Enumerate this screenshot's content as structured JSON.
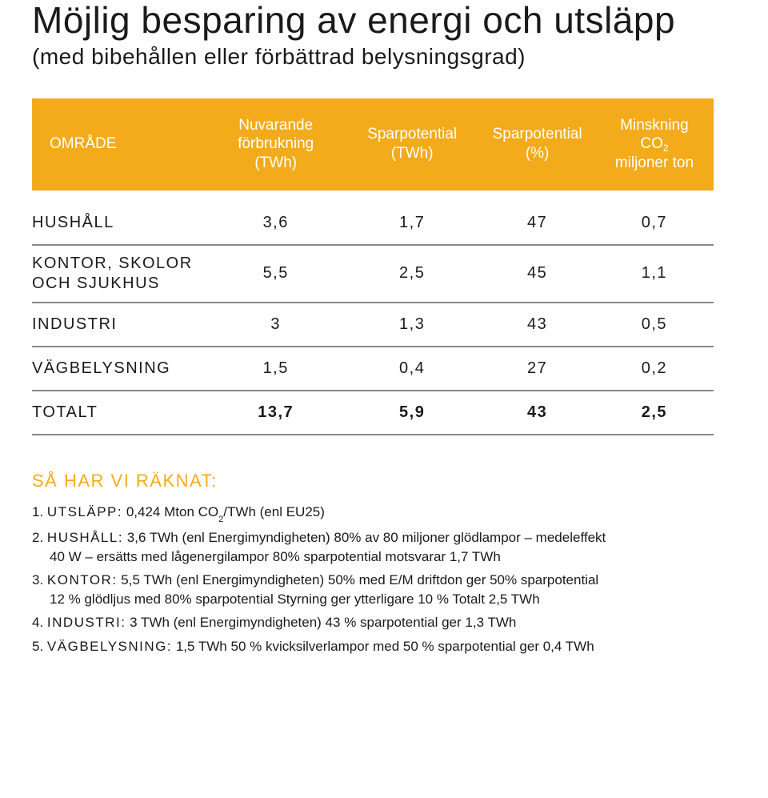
{
  "title": "Möjlig besparing av energi och utsläpp",
  "subtitle": "(med bibehållen eller förbättrad belysningsgrad)",
  "table": {
    "accent_color": "#f3ab1c",
    "rule_color": "#888888",
    "columns": [
      {
        "lines": [
          "OMRÅDE"
        ]
      },
      {
        "lines": [
          "Nuvarande",
          "förbrukning",
          "(TWh)"
        ]
      },
      {
        "lines": [
          "Sparpotential",
          "(TWh)"
        ]
      },
      {
        "lines": [
          "Sparpotential",
          "(%)"
        ]
      },
      {
        "lines": [
          "Minskning",
          "CO₂",
          "miljoner ton"
        ],
        "co2_sub": true
      }
    ],
    "rows": [
      {
        "label_lines": [
          "HUSHÅLL"
        ],
        "v": [
          "3,6",
          "1,7",
          "47",
          "0,7"
        ]
      },
      {
        "label_lines": [
          "KONTOR, SKOLOR",
          "OCH SJUKHUS"
        ],
        "v": [
          "5,5",
          "2,5",
          "45",
          "1,1"
        ]
      },
      {
        "label_lines": [
          "INDUSTRI"
        ],
        "v": [
          "3",
          "1,3",
          "43",
          "0,5"
        ]
      },
      {
        "label_lines": [
          "VÄGBELYSNING"
        ],
        "v": [
          "1,5",
          "0,4",
          "27",
          "0,2"
        ]
      },
      {
        "label_lines": [
          "TOTALT"
        ],
        "v": [
          "13,7",
          "5,9",
          "43",
          "2,5"
        ],
        "totals": true
      }
    ]
  },
  "notes_heading": "SÅ HAR VI RÄKNAT:",
  "notes": [
    {
      "n": "1.",
      "label": "UTSLÄPP:",
      "body_lines": [
        " 0,424 Mton CO₂/TWh (enl EU25)"
      ]
    },
    {
      "n": "2.",
      "label": "HUSHÅLL:",
      "body_lines": [
        " 3,6 TWh (enl Energimyndigheten) 80% av 80 miljoner glödlampor – medeleffekt",
        "40 W – ersätts med lågenergilampor 80% sparpotential motsvarar 1,7 TWh"
      ]
    },
    {
      "n": "3.",
      "label": "KONTOR:",
      "body_lines": [
        " 5,5 TWh (enl Energimyndigheten) 50% med E/M driftdon ger 50% sparpotential",
        "12 % glödljus med 80% sparpotential Styrning ger ytterligare 10 % Totalt 2,5 TWh"
      ]
    },
    {
      "n": "4.",
      "label": "INDUSTRI:",
      "body_lines": [
        " 3 TWh (enl Energimyndigheten) 43 % sparpotential ger 1,3 TWh"
      ]
    },
    {
      "n": "5.",
      "label": "VÄGBELYSNING:",
      "body_lines": [
        " 1,5 TWh 50 % kvicksilverlampor med 50 % sparpotential ger 0,4 TWh"
      ]
    }
  ]
}
